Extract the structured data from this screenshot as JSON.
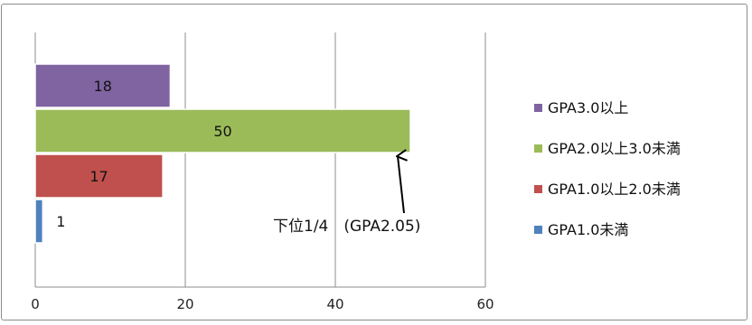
{
  "chart_data": {
    "type": "bar",
    "orientation": "horizontal",
    "title": "",
    "xlabel": "",
    "ylabel": "",
    "xlim": [
      0,
      60
    ],
    "x_ticks": [
      0,
      20,
      40,
      60
    ],
    "grid": true,
    "legend_position": "right",
    "series": [
      {
        "name": "GPA1.0未満",
        "value": 1,
        "color": "#4f81bd"
      },
      {
        "name": "GPA1.0以上2.0未満",
        "value": 17,
        "color": "#c0504d"
      },
      {
        "name": "GPA2.0以上3.0未満",
        "value": 50,
        "color": "#9bbb59"
      },
      {
        "name": "GPA3.0以上",
        "value": 18,
        "color": "#8064a2"
      }
    ],
    "annotation": {
      "text": "下位1/4　(GPA2.05)",
      "points_to": "GPA2.0以上3.0未満"
    }
  }
}
